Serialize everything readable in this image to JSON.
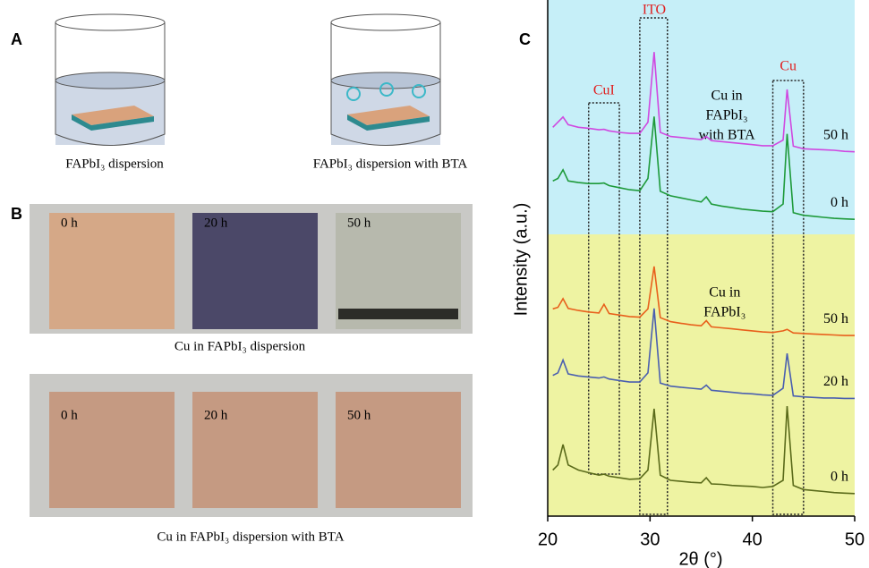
{
  "panels": {
    "a": {
      "label": "A",
      "captions": [
        "FAPbI₃ dispersion",
        "FAPbI₃ dispersion with BTA"
      ]
    },
    "b": {
      "label": "B",
      "rows": [
        {
          "caption": "Cu in FAPbI₃ dispersion",
          "times": [
            "0 h",
            "20 h",
            "50 h"
          ]
        },
        {
          "caption": "Cu in FAPbI₃ dispersion with BTA",
          "times": [
            "0 h",
            "20 h",
            "50 h"
          ]
        }
      ]
    },
    "c": {
      "label": "C"
    }
  },
  "chart_data": {
    "type": "line",
    "xlabel": "2θ (°)",
    "ylabel": "Intensity (a.u.)",
    "x": [
      20.5,
      21,
      21.5,
      22,
      23,
      24,
      25,
      25.5,
      26,
      27,
      28,
      29,
      29.8,
      30.4,
      31,
      32,
      33,
      34,
      35,
      35.5,
      36,
      37,
      38,
      39,
      40,
      41,
      42,
      43,
      43.4,
      44,
      45,
      46,
      47,
      48,
      49,
      50
    ],
    "series": [
      {
        "name": "50 h",
        "color": "#d048e0",
        "values": [
          76,
          77,
          78,
          76.5,
          76,
          75.8,
          75.5,
          75.6,
          75.3,
          75,
          74.8,
          74.8,
          77,
          90.7,
          75,
          74.2,
          74,
          73.8,
          73.6,
          74.2,
          73.4,
          73.2,
          73,
          72.8,
          72.6,
          72.4,
          72.4,
          73.5,
          83.4,
          72.3,
          71.8,
          71.7,
          71.6,
          71.5,
          71.3,
          71.2
        ]
      },
      {
        "name": "0 h",
        "color": "#1e9a3a",
        "values": [
          65.5,
          66,
          67.7,
          65.5,
          65.2,
          65,
          65,
          65.1,
          64.6,
          64.2,
          63.8,
          63.6,
          66,
          78.1,
          63.5,
          62.6,
          62.2,
          61.8,
          61.4,
          62.4,
          61,
          60.6,
          60.3,
          60,
          59.8,
          59.6,
          59.5,
          61,
          74.7,
          59.3,
          58.8,
          58.6,
          58.4,
          58.2,
          58.1,
          58
        ]
      },
      {
        "name": "50 h",
        "color": "#e8601c",
        "values": [
          40.5,
          40.8,
          42.5,
          40.6,
          40.2,
          39.9,
          39.7,
          41.4,
          39.6,
          39.3,
          39,
          38.9,
          40.5,
          48.8,
          38.8,
          38,
          37.7,
          37.4,
          37.2,
          38.2,
          37,
          36.8,
          36.6,
          36.4,
          36.2,
          36,
          35.9,
          36.2,
          36.5,
          35.8,
          35.7,
          35.6,
          35.5,
          35.4,
          35.3,
          35.3
        ]
      },
      {
        "name": "20 h",
        "color": "#4a5fb0",
        "values": [
          27.5,
          28,
          30.5,
          27.8,
          27.4,
          27.2,
          27,
          27.2,
          26.8,
          26.5,
          26.2,
          26.2,
          28,
          40.6,
          26,
          25.4,
          25.2,
          25,
          24.8,
          25.6,
          24.6,
          24.4,
          24.2,
          24,
          23.9,
          23.7,
          23.6,
          25,
          31.8,
          23.5,
          23.3,
          23.2,
          23.1,
          23.1,
          23,
          23
        ]
      },
      {
        "name": "0 h",
        "color": "#5a6a1a",
        "values": [
          9,
          10,
          14,
          10,
          9,
          8.5,
          8,
          8.2,
          7.8,
          7.5,
          7.2,
          7.3,
          9,
          21,
          8,
          7,
          6.8,
          6.6,
          6.5,
          7.5,
          6.3,
          6.2,
          6,
          5.9,
          5.8,
          5.6,
          5.8,
          7,
          21.5,
          6,
          5.2,
          5,
          4.8,
          4.6,
          4.5,
          4.4
        ]
      }
    ],
    "xlim": [
      20,
      50
    ],
    "xticks": [
      20,
      30,
      40,
      50
    ],
    "ylim": [
      0,
      100
    ],
    "annotations": {
      "cui": "CuI",
      "ito": "ITO",
      "cu": "Cu",
      "bta": [
        "Cu in",
        "FAPbI₃",
        "with BTA"
      ],
      "plain": [
        "Cu in",
        "FAPbI₃"
      ]
    }
  }
}
